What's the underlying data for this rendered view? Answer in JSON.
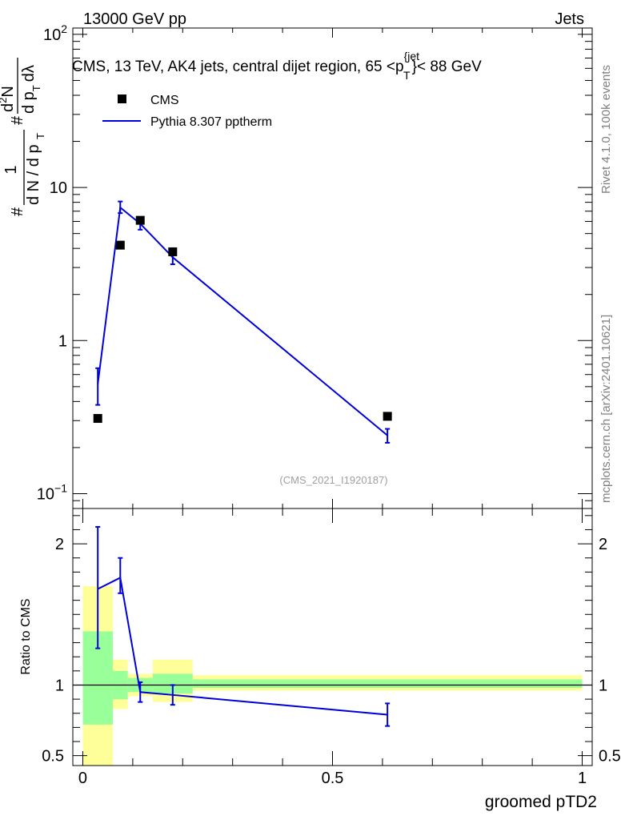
{
  "header": {
    "left": "13000 GeV pp",
    "right": "Jets"
  },
  "side_labels": {
    "rivet": "Rivet 4.1.0,  100k events",
    "mcplots": "mcplots.cern.ch [arXiv:2401.10621]"
  },
  "colors": {
    "data": "#000000",
    "mc": "#0000dd",
    "band_inner": "#99ff99",
    "band_outer": "#ffff99",
    "watermark": "#a0a0a0"
  },
  "chart_data": [
    {
      "type": "scatter",
      "panel": "main",
      "title": "CMS, 13 TeV, AK4 jets, central dijet region, 65 <p",
      "title_sup": "{jet",
      "title_sub": "T",
      "title_end": "}< 88 GeV",
      "ylabel": "1/(dN/dpT) d²N/(dpT dλ)",
      "ylabel_parts": {
        "hash": "#",
        "one": "1",
        "dn": "d N / d p",
        "t": "T",
        "num": "d",
        "num_sup": "2",
        "num_n": "N",
        "den": "d p",
        "den_t": "T",
        "den_lambda": "dλ"
      },
      "yscale": "log",
      "ylim": [
        0.08,
        110
      ],
      "yticks": [
        {
          "value": 0.1,
          "base": "10",
          "exp": "−1"
        },
        {
          "value": 1,
          "label": "1"
        },
        {
          "value": 10,
          "label": "10"
        },
        {
          "value": 100,
          "base": "10",
          "exp": "2"
        }
      ],
      "watermark": "(CMS_2021_I1920187)",
      "legend": {
        "placement": "top-left",
        "entries": [
          {
            "name": "CMS",
            "style": "marker"
          },
          {
            "name": "Pythia 8.307 pptherm",
            "style": "line"
          }
        ]
      },
      "series": [
        {
          "name": "CMS",
          "x": [
            0.03,
            0.075,
            0.115,
            0.18,
            0.61
          ],
          "y": [
            0.31,
            4.2,
            6.1,
            3.8,
            0.32
          ]
        },
        {
          "name": "Pythia 8.307 pptherm",
          "x": [
            0.03,
            0.075,
            0.115,
            0.18,
            0.61
          ],
          "y": [
            0.52,
            7.4,
            5.8,
            3.5,
            0.24
          ],
          "err_lo": [
            0.38,
            6.8,
            5.3,
            3.15,
            0.215
          ],
          "err_hi": [
            0.66,
            8.1,
            6.3,
            3.85,
            0.265
          ]
        }
      ]
    },
    {
      "type": "line",
      "panel": "ratio",
      "xlabel": "groomed pTD2",
      "ylabel": "Ratio to CMS",
      "xlim": [
        -0.02,
        1.02
      ],
      "ylim": [
        0.43,
        2.25
      ],
      "xticks": [
        {
          "value": 0,
          "label": "0"
        },
        {
          "value": 0.5,
          "label": "0.5"
        },
        {
          "value": 1,
          "label": "1"
        }
      ],
      "yticks": [
        {
          "value": 0.5,
          "label": "0.5"
        },
        {
          "value": 1,
          "label": "1"
        },
        {
          "value": 2,
          "label": "2"
        }
      ],
      "bands": [
        {
          "x0": 0.0,
          "x1": 0.06,
          "in_lo": 0.72,
          "in_hi": 1.38,
          "out_lo": 0.43,
          "out_hi": 1.7
        },
        {
          "x0": 0.06,
          "x1": 0.09,
          "in_lo": 0.9,
          "in_hi": 1.1,
          "out_lo": 0.83,
          "out_hi": 1.18
        },
        {
          "x0": 0.09,
          "x1": 0.14,
          "in_lo": 0.95,
          "in_hi": 1.05,
          "out_lo": 0.92,
          "out_hi": 1.08
        },
        {
          "x0": 0.14,
          "x1": 0.22,
          "in_lo": 0.94,
          "in_hi": 1.08,
          "out_lo": 0.88,
          "out_hi": 1.18
        },
        {
          "x0": 0.22,
          "x1": 1.0,
          "in_lo": 0.98,
          "in_hi": 1.04,
          "out_lo": 0.96,
          "out_hi": 1.07
        }
      ],
      "series": [
        {
          "name": "Pythia 8.307 pptherm / CMS",
          "x": [
            0.03,
            0.075,
            0.115,
            0.18,
            0.61
          ],
          "y": [
            1.68,
            1.76,
            0.95,
            0.93,
            0.79
          ],
          "err_lo": [
            1.26,
            1.65,
            0.88,
            0.86,
            0.71
          ],
          "err_hi": [
            2.12,
            1.9,
            1.02,
            1.0,
            0.87
          ]
        }
      ]
    }
  ]
}
